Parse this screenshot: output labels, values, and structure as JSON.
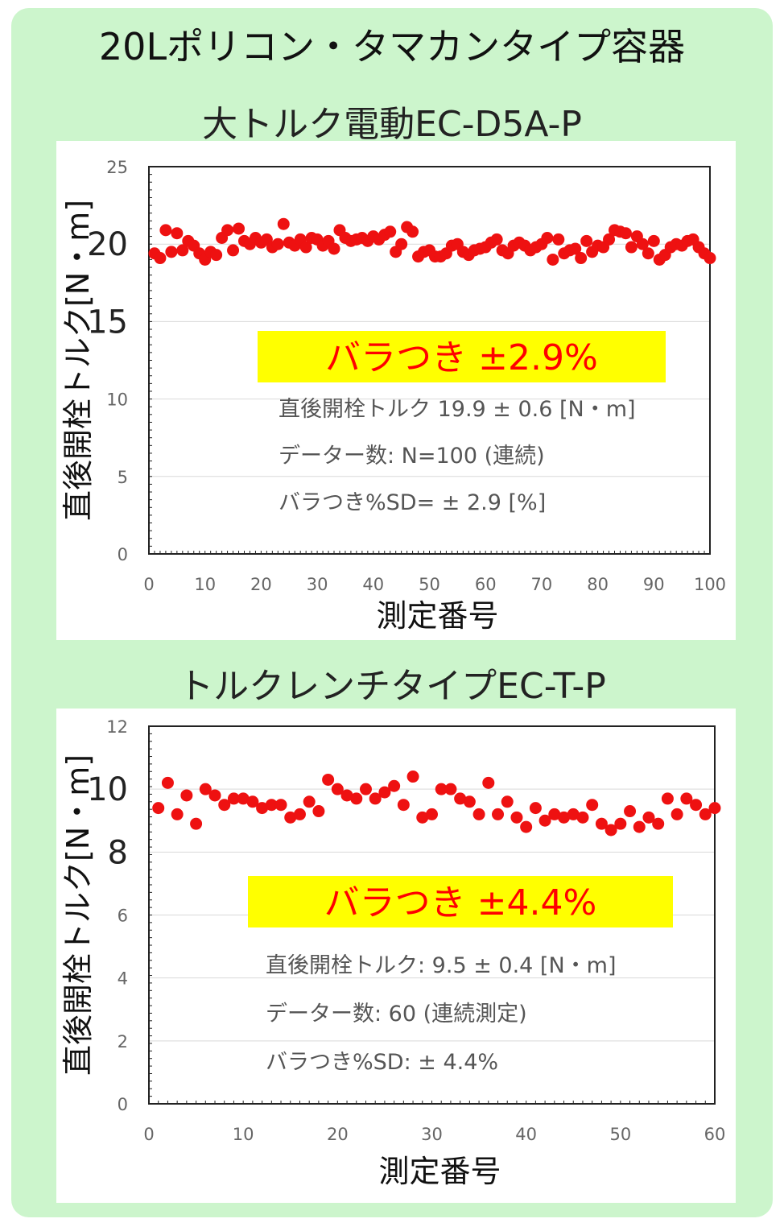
{
  "page_title": "20Lポリコン・タマカンタイプ容器",
  "sections": [
    {
      "subtitle": "大トルク電動EC-D5A-P"
    },
    {
      "subtitle": "トルクレンチタイプEC-T-P"
    }
  ],
  "chart_data": [
    {
      "type": "scatter",
      "xlabel": "測定番号",
      "ylabel": "直後開栓トルク[N・m]",
      "xlim": [
        0,
        100
      ],
      "ylim": [
        0,
        25
      ],
      "x_ticks": [
        0,
        10,
        20,
        30,
        40,
        50,
        60,
        70,
        80,
        90,
        100
      ],
      "y_ticks": [
        0,
        5,
        10,
        15,
        20,
        25
      ],
      "grid": true,
      "series": [
        {
          "color": "#ee1111",
          "x": [
            1,
            2,
            3,
            4,
            5,
            6,
            7,
            8,
            9,
            10,
            11,
            12,
            13,
            14,
            15,
            16,
            17,
            18,
            19,
            20,
            21,
            22,
            23,
            24,
            25,
            26,
            27,
            28,
            29,
            30,
            31,
            32,
            33,
            34,
            35,
            36,
            37,
            38,
            39,
            40,
            41,
            42,
            43,
            44,
            45,
            46,
            47,
            48,
            49,
            50,
            51,
            52,
            53,
            54,
            55,
            56,
            57,
            58,
            59,
            60,
            61,
            62,
            63,
            64,
            65,
            66,
            67,
            68,
            69,
            70,
            71,
            72,
            73,
            74,
            75,
            76,
            77,
            78,
            79,
            80,
            81,
            82,
            83,
            84,
            85,
            86,
            87,
            88,
            89,
            90,
            91,
            92,
            93,
            94,
            95,
            96,
            97,
            98,
            99,
            100
          ],
          "y": [
            19.4,
            19.1,
            20.9,
            19.5,
            20.7,
            19.6,
            20.2,
            19.9,
            19.4,
            19.0,
            19.5,
            19.3,
            20.4,
            20.9,
            19.6,
            21.0,
            20.2,
            20.0,
            20.4,
            20.1,
            20.3,
            19.8,
            20.0,
            21.3,
            20.1,
            19.9,
            20.3,
            19.8,
            20.4,
            20.3,
            19.9,
            20.2,
            19.7,
            20.9,
            20.4,
            20.2,
            20.3,
            20.4,
            20.2,
            20.5,
            20.3,
            20.6,
            20.8,
            19.5,
            20.0,
            21.1,
            20.8,
            19.2,
            19.5,
            19.6,
            19.2,
            19.2,
            19.4,
            19.9,
            20.0,
            19.5,
            19.3,
            19.6,
            19.7,
            19.8,
            20.1,
            20.3,
            19.6,
            19.4,
            19.9,
            20.1,
            19.9,
            19.6,
            19.8,
            20.0,
            20.4,
            19.0,
            20.3,
            19.4,
            19.6,
            19.7,
            19.1,
            20.2,
            19.5,
            19.9,
            19.8,
            20.3,
            20.9,
            20.8,
            20.7,
            19.8,
            20.5,
            20.0,
            19.4,
            20.2,
            19.0,
            19.3,
            19.8,
            20.0,
            19.9,
            20.2,
            20.3,
            19.8,
            19.4,
            19.1
          ]
        }
      ],
      "banner": "バラつき ±2.9%",
      "annotations": [
        "直後開栓トルク 19.9 ± 0.6 [N・m]",
        "データー数: N=100 (連続)",
        "バラつき%SD= ± 2.9 [%]"
      ]
    },
    {
      "type": "scatter",
      "xlabel": "測定番号",
      "ylabel": "直後開栓トルク[N・m]",
      "xlim": [
        0,
        60
      ],
      "ylim": [
        0,
        12
      ],
      "x_ticks": [
        0,
        10,
        20,
        30,
        40,
        50,
        60
      ],
      "y_ticks": [
        0,
        2,
        4,
        6,
        8,
        10,
        12
      ],
      "grid": true,
      "series": [
        {
          "color": "#ee1111",
          "x": [
            1,
            2,
            3,
            4,
            5,
            6,
            7,
            8,
            9,
            10,
            11,
            12,
            13,
            14,
            15,
            16,
            17,
            18,
            19,
            20,
            21,
            22,
            23,
            24,
            25,
            26,
            27,
            28,
            29,
            30,
            31,
            32,
            33,
            34,
            35,
            36,
            37,
            38,
            39,
            40,
            41,
            42,
            43,
            44,
            45,
            46,
            47,
            48,
            49,
            50,
            51,
            52,
            53,
            54,
            55,
            56,
            57,
            58,
            59,
            60
          ],
          "y": [
            9.4,
            10.2,
            9.2,
            9.8,
            8.9,
            10.0,
            9.8,
            9.5,
            9.7,
            9.7,
            9.6,
            9.4,
            9.5,
            9.5,
            9.1,
            9.2,
            9.6,
            9.3,
            10.3,
            10.0,
            9.8,
            9.7,
            10.0,
            9.7,
            9.9,
            10.1,
            9.5,
            10.4,
            9.1,
            9.2,
            10.0,
            10.0,
            9.7,
            9.6,
            9.2,
            10.2,
            9.2,
            9.6,
            9.1,
            8.8,
            9.4,
            9.0,
            9.2,
            9.1,
            9.2,
            9.1,
            9.5,
            8.9,
            8.7,
            8.9,
            9.3,
            8.8,
            9.1,
            8.9,
            9.7,
            9.2,
            9.7,
            9.5,
            9.2,
            9.4
          ]
        }
      ],
      "banner": "バラつき ±4.4%",
      "annotations": [
        "直後開栓トルク: 9.5 ± 0.4 [N・m]",
        "データー数:  60 (連続測定)",
        "バラつき%SD: ± 4.4%"
      ]
    }
  ]
}
